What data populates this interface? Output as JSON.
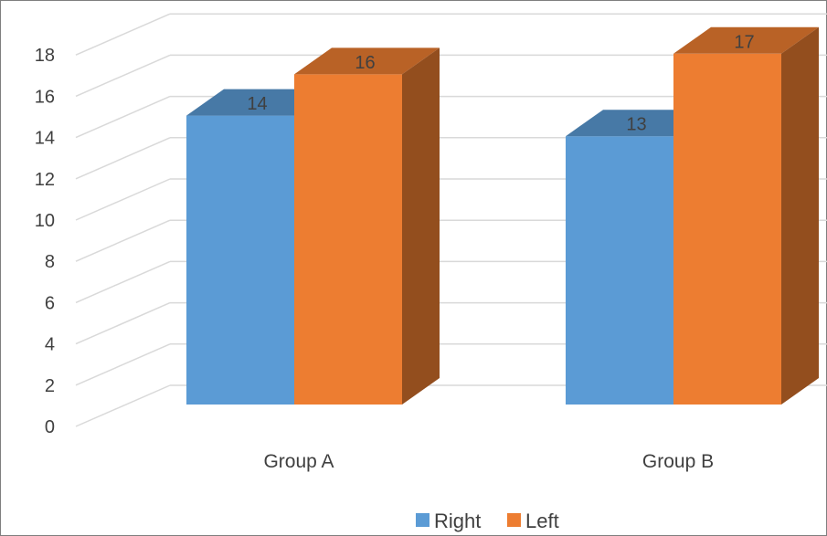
{
  "chart_data": {
    "type": "bar",
    "style": "3d-clustered-column",
    "categories": [
      "Group A",
      "Group B"
    ],
    "series": [
      {
        "name": "Right",
        "values": [
          14,
          13
        ],
        "color": "#5b9bd5"
      },
      {
        "name": "Left",
        "values": [
          16,
          17
        ],
        "color": "#ed7d31"
      }
    ],
    "y_ticks": [
      "0",
      "2",
      "4",
      "6",
      "8",
      "10",
      "12",
      "14",
      "16",
      "18"
    ],
    "ylim": [
      0,
      18
    ],
    "data_labels": true,
    "grid": true,
    "legend_position": "bottom",
    "colors": {
      "gridline": "#d9d9d9",
      "text": "#404040",
      "border": "#7f7f7f"
    }
  }
}
